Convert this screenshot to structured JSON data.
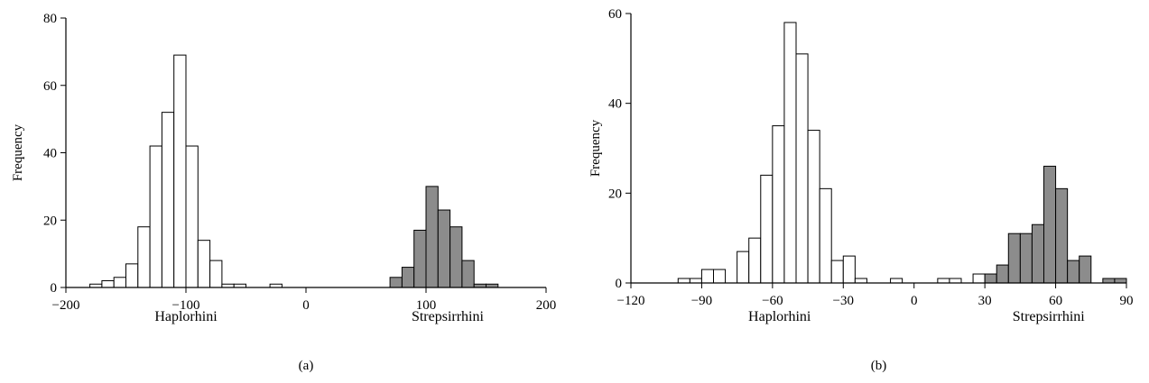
{
  "chart_data": [
    {
      "type": "bar",
      "panel_label": "(a)",
      "ylabel": "Frequency",
      "xlim": [
        -200,
        200
      ],
      "ylim": [
        0,
        80
      ],
      "x_ticks": [
        -200,
        -100,
        0,
        100,
        200
      ],
      "y_ticks": [
        0,
        20,
        40,
        60,
        80
      ],
      "bin_width": 10,
      "group_labels": [
        {
          "text": "Haplorhini",
          "x": -100
        },
        {
          "text": "Strepsirrhini",
          "x": 118
        }
      ],
      "series": [
        {
          "fill": "#ffffff",
          "bins": [
            {
              "x0": -180,
              "x1": -170,
              "y": 1
            },
            {
              "x0": -170,
              "x1": -160,
              "y": 2
            },
            {
              "x0": -160,
              "x1": -150,
              "y": 3
            },
            {
              "x0": -150,
              "x1": -140,
              "y": 7
            },
            {
              "x0": -140,
              "x1": -130,
              "y": 18
            },
            {
              "x0": -130,
              "x1": -120,
              "y": 42
            },
            {
              "x0": -120,
              "x1": -110,
              "y": 52
            },
            {
              "x0": -110,
              "x1": -100,
              "y": 69
            },
            {
              "x0": -100,
              "x1": -90,
              "y": 42
            },
            {
              "x0": -90,
              "x1": -80,
              "y": 14
            },
            {
              "x0": -80,
              "x1": -70,
              "y": 8
            },
            {
              "x0": -70,
              "x1": -60,
              "y": 1
            },
            {
              "x0": -60,
              "x1": -50,
              "y": 1
            },
            {
              "x0": -30,
              "x1": -20,
              "y": 1
            }
          ]
        },
        {
          "fill": "#8c8c8c",
          "bins": [
            {
              "x0": 70,
              "x1": 80,
              "y": 3
            },
            {
              "x0": 80,
              "x1": 90,
              "y": 6
            },
            {
              "x0": 90,
              "x1": 100,
              "y": 17
            },
            {
              "x0": 100,
              "x1": 110,
              "y": 30
            },
            {
              "x0": 110,
              "x1": 120,
              "y": 23
            },
            {
              "x0": 120,
              "x1": 130,
              "y": 18
            },
            {
              "x0": 130,
              "x1": 140,
              "y": 8
            },
            {
              "x0": 140,
              "x1": 150,
              "y": 1
            },
            {
              "x0": 150,
              "x1": 160,
              "y": 1
            }
          ]
        }
      ]
    },
    {
      "type": "bar",
      "panel_label": "(b)",
      "ylabel": "Frequency",
      "xlim": [
        -120,
        90
      ],
      "ylim": [
        0,
        60
      ],
      "x_ticks": [
        -120,
        -90,
        -60,
        -30,
        0,
        30,
        60,
        90
      ],
      "y_ticks": [
        0,
        20,
        40,
        60
      ],
      "bin_width": 5,
      "group_labels": [
        {
          "text": "Haplorhini",
          "x": -57
        },
        {
          "text": "Strepsirrhini",
          "x": 57
        }
      ],
      "series": [
        {
          "fill": "#ffffff",
          "bins": [
            {
              "x0": -100,
              "x1": -95,
              "y": 1
            },
            {
              "x0": -95,
              "x1": -90,
              "y": 1
            },
            {
              "x0": -90,
              "x1": -85,
              "y": 3
            },
            {
              "x0": -85,
              "x1": -80,
              "y": 3
            },
            {
              "x0": -75,
              "x1": -70,
              "y": 7
            },
            {
              "x0": -70,
              "x1": -65,
              "y": 10
            },
            {
              "x0": -65,
              "x1": -60,
              "y": 24
            },
            {
              "x0": -60,
              "x1": -55,
              "y": 35
            },
            {
              "x0": -55,
              "x1": -50,
              "y": 58
            },
            {
              "x0": -50,
              "x1": -45,
              "y": 51
            },
            {
              "x0": -45,
              "x1": -40,
              "y": 34
            },
            {
              "x0": -40,
              "x1": -35,
              "y": 21
            },
            {
              "x0": -35,
              "x1": -30,
              "y": 5
            },
            {
              "x0": -30,
              "x1": -25,
              "y": 6
            },
            {
              "x0": -25,
              "x1": -20,
              "y": 1
            },
            {
              "x0": -10,
              "x1": -5,
              "y": 1
            },
            {
              "x0": 10,
              "x1": 15,
              "y": 1
            },
            {
              "x0": 15,
              "x1": 20,
              "y": 1
            },
            {
              "x0": 25,
              "x1": 30,
              "y": 2
            }
          ]
        },
        {
          "fill": "#8c8c8c",
          "bins": [
            {
              "x0": 30,
              "x1": 35,
              "y": 2
            },
            {
              "x0": 35,
              "x1": 40,
              "y": 4
            },
            {
              "x0": 40,
              "x1": 45,
              "y": 11
            },
            {
              "x0": 45,
              "x1": 50,
              "y": 11
            },
            {
              "x0": 50,
              "x1": 55,
              "y": 13
            },
            {
              "x0": 55,
              "x1": 60,
              "y": 26
            },
            {
              "x0": 60,
              "x1": 65,
              "y": 21
            },
            {
              "x0": 65,
              "x1": 70,
              "y": 5
            },
            {
              "x0": 70,
              "x1": 75,
              "y": 6
            },
            {
              "x0": 80,
              "x1": 85,
              "y": 1
            },
            {
              "x0": 85,
              "x1": 90,
              "y": 1
            }
          ]
        }
      ]
    }
  ]
}
